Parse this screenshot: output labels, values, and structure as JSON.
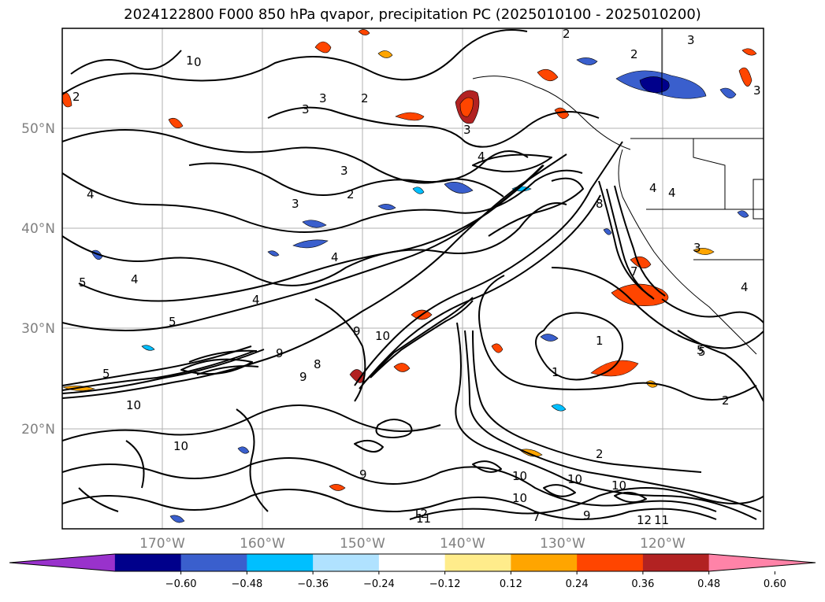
{
  "title": "2024122800 F000 850 hPa qvapor, precipitation PC (2025010100 - 2025010200)",
  "lat_labels": [
    "50°N",
    "40°N",
    "30°N",
    "20°N"
  ],
  "lon_labels": [
    "170°W",
    "160°W",
    "150°W",
    "140°W",
    "130°W",
    "120°W"
  ],
  "colorbar": {
    "ticks": [
      "−0.60",
      "−0.48",
      "−0.36",
      "−0.24",
      "−0.12",
      "0.12",
      "0.24",
      "0.36",
      "0.48",
      "0.60"
    ],
    "colors": [
      "#9932cc",
      "#00008b",
      "#3a5fcd",
      "#00bfff",
      "#b0e2ff",
      "#ffffff",
      "#ffec8b",
      "#ffa500",
      "#ff4500",
      "#b22222",
      "#ff83a8"
    ]
  },
  "contour_labels": [
    "1",
    "0",
    "3",
    "2",
    "2",
    "3",
    "2",
    "3",
    "2",
    "3",
    "3",
    "4",
    "3",
    "2",
    "3",
    "4",
    "4",
    "4",
    "5",
    "5",
    "4",
    "4",
    "3",
    "4",
    "5",
    "4",
    "5",
    "7",
    "8",
    "9",
    "10",
    "9",
    "8",
    "10",
    "9",
    "10",
    "1",
    "1",
    "5",
    "2",
    "2",
    "7",
    "9",
    "10",
    "10",
    "10",
    "11",
    "12",
    "12",
    "9",
    "10",
    "11"
  ]
}
